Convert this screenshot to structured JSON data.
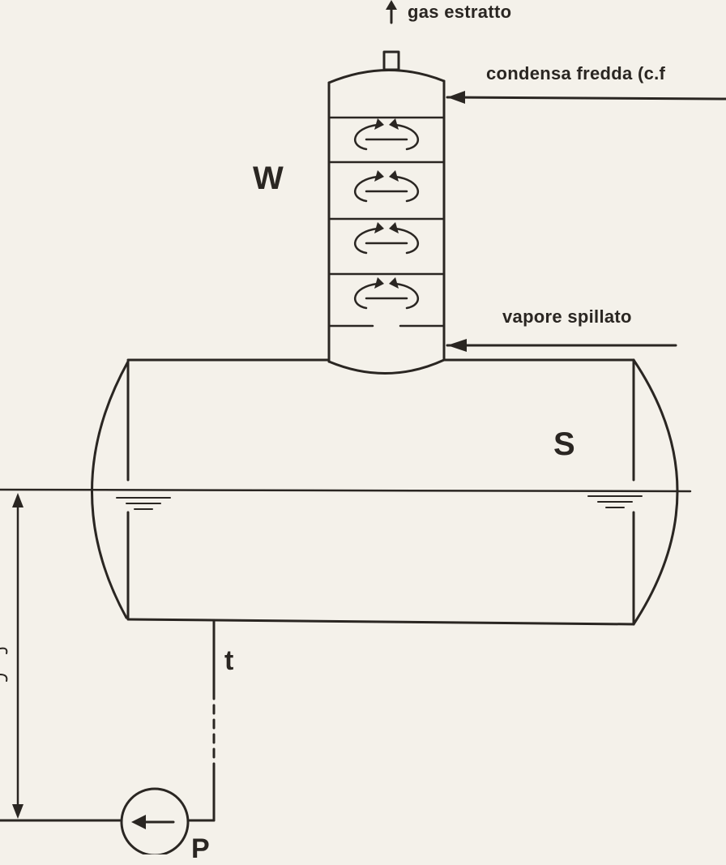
{
  "labels": {
    "gas_out": "gas estratto",
    "cold_condensate": "condensa fredda (c.f",
    "bled_steam": "vapore spillato",
    "W": "W",
    "S": "S",
    "t": "t",
    "P": "P"
  },
  "colors": {
    "ink": "#2a2622",
    "paper": "#f4f1ea"
  }
}
